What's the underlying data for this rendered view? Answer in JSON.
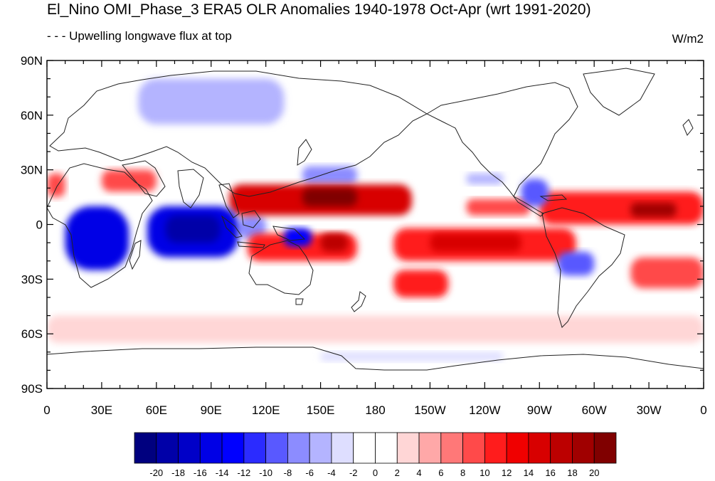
{
  "title": "El_Nino OMI_Phase_3 ERA5 OLR Anomalies 1940-1978 Oct-Apr (wrt 1991-2020)",
  "subtitle": "- - - Upwelling longwave flux at top",
  "units": "W/m2",
  "lat_labels": [
    "90N",
    "60N",
    "30N",
    "0",
    "30S",
    "60S",
    "90S"
  ],
  "lon_labels": [
    "0",
    "30E",
    "60E",
    "90E",
    "120E",
    "150E",
    "180",
    "150W",
    "120W",
    "90W",
    "60W",
    "30W",
    "0"
  ],
  "colorbar": {
    "colors": [
      "#00007f",
      "#0000a8",
      "#0000c8",
      "#0000e6",
      "#0000ff",
      "#2b2bff",
      "#5959ff",
      "#8c8cff",
      "#b4b4ff",
      "#dedeff",
      "#ffffff",
      "#ffffff",
      "#ffd6d6",
      "#ffa8a8",
      "#ff7878",
      "#ff4a4a",
      "#ff1c1c",
      "#f00000",
      "#d80000",
      "#bc0000",
      "#a00000",
      "#800000"
    ],
    "labels": [
      "-20",
      "-18",
      "-16",
      "-14",
      "-12",
      "-10",
      "-8",
      "-6",
      "-4",
      "-2",
      "0",
      "2",
      "4",
      "6",
      "8",
      "10",
      "12",
      "14",
      "16",
      "18",
      "20"
    ]
  },
  "chart_data": {
    "type": "heatmap",
    "title": "El_Nino OMI_Phase_3 ERA5 OLR Anomalies 1940-1978 Oct-Apr (wrt 1991-2020)",
    "variable": "Upwelling longwave flux at top",
    "units": "W/m2",
    "xlim": [
      0,
      360
    ],
    "ylim": [
      -90,
      90
    ],
    "levels": [
      -20,
      -18,
      -16,
      -14,
      -12,
      -10,
      -8,
      -6,
      -4,
      -2,
      0,
      2,
      4,
      6,
      8,
      10,
      12,
      14,
      16,
      18,
      20
    ],
    "anomaly_regions": [
      {
        "lon": [
          10,
          45
        ],
        "lat": [
          -25,
          10
        ],
        "value": -16
      },
      {
        "lon": [
          55,
          105
        ],
        "lat": [
          -18,
          10
        ],
        "value": -16
      },
      {
        "lon": [
          65,
          95
        ],
        "lat": [
          -10,
          5
        ],
        "value": -20
      },
      {
        "lon": [
          105,
          120
        ],
        "lat": [
          -8,
          5
        ],
        "value": -8
      },
      {
        "lon": [
          130,
          145
        ],
        "lat": [
          -12,
          -2
        ],
        "value": -14
      },
      {
        "lon": [
          100,
          200
        ],
        "lat": [
          5,
          22
        ],
        "value": 14
      },
      {
        "lon": [
          140,
          170
        ],
        "lat": [
          10,
          20
        ],
        "value": 20
      },
      {
        "lon": [
          110,
          170
        ],
        "lat": [
          -20,
          -5
        ],
        "value": 10
      },
      {
        "lon": [
          150,
          165
        ],
        "lat": [
          -15,
          -5
        ],
        "value": 16
      },
      {
        "lon": [
          190,
          290
        ],
        "lat": [
          -20,
          -2
        ],
        "value": 10
      },
      {
        "lon": [
          210,
          260
        ],
        "lat": [
          -15,
          -5
        ],
        "value": 14
      },
      {
        "lon": [
          190,
          220
        ],
        "lat": [
          -40,
          -25
        ],
        "value": 10
      },
      {
        "lon": [
          230,
          265
        ],
        "lat": [
          5,
          14
        ],
        "value": 8
      },
      {
        "lon": [
          270,
          360
        ],
        "lat": [
          0,
          18
        ],
        "value": 10
      },
      {
        "lon": [
          320,
          345
        ],
        "lat": [
          4,
          12
        ],
        "value": 18
      },
      {
        "lon": [
          320,
          360
        ],
        "lat": [
          -35,
          -18
        ],
        "value": 8
      },
      {
        "lon": [
          280,
          300
        ],
        "lat": [
          -28,
          -15
        ],
        "value": -10
      },
      {
        "lon": [
          260,
          275
        ],
        "lat": [
          10,
          25
        ],
        "value": -10
      },
      {
        "lon": [
          140,
          170
        ],
        "lat": [
          22,
          32
        ],
        "value": -8
      },
      {
        "lon": [
          230,
          250
        ],
        "lat": [
          22,
          28
        ],
        "value": -6
      },
      {
        "lon": [
          0,
          10
        ],
        "lat": [
          15,
          28
        ],
        "value": 8
      },
      {
        "lon": [
          30,
          60
        ],
        "lat": [
          18,
          30
        ],
        "value": 8
      },
      {
        "lon": [
          50,
          130
        ],
        "lat": [
          55,
          80
        ],
        "value": -6
      },
      {
        "lon": [
          0,
          360
        ],
        "lat": [
          80,
          90
        ],
        "value": -2
      },
      {
        "lon": [
          0,
          360
        ],
        "lat": [
          -65,
          -50
        ],
        "value": 3
      },
      {
        "lon": [
          150,
          250
        ],
        "lat": [
          -75,
          -70
        ],
        "value": -4
      }
    ]
  }
}
